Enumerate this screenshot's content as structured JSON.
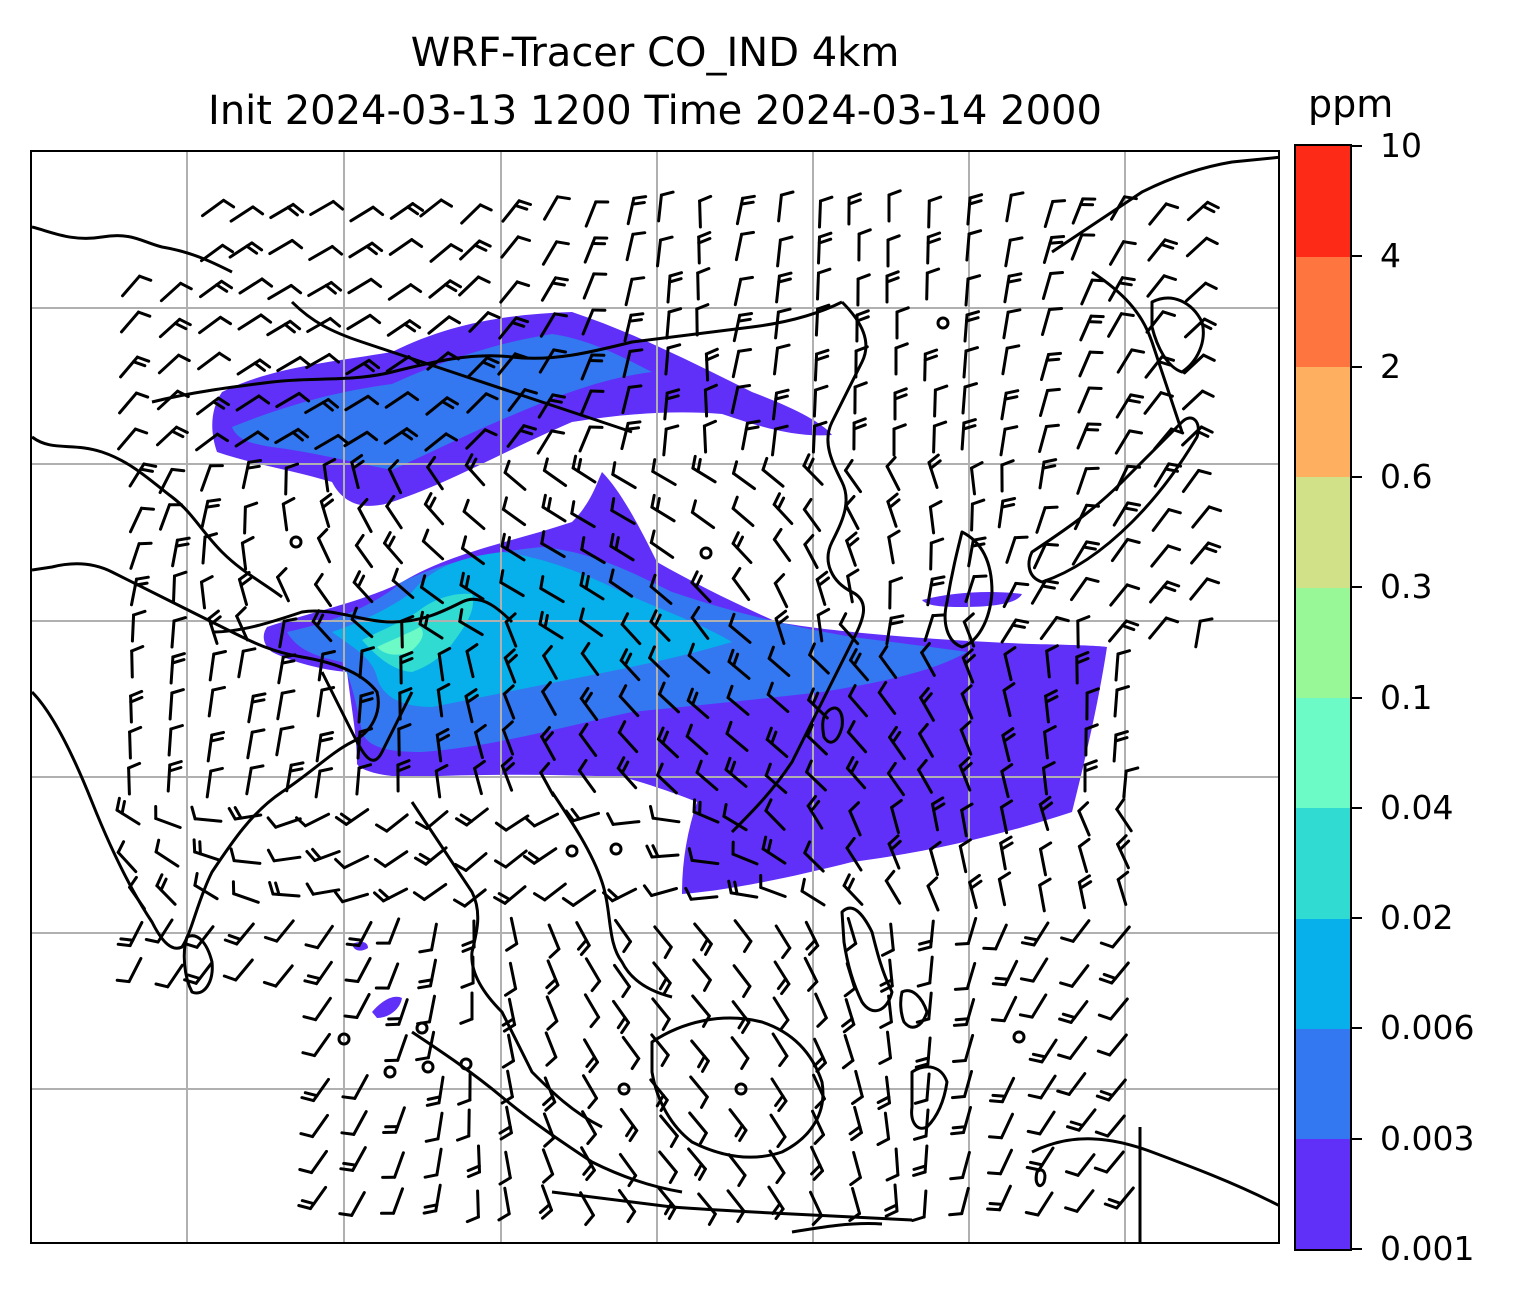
{
  "title": {
    "line1": "WRF-Tracer CO_IND 4km",
    "line2": "Init 2024-03-13 1200 Time 2024-03-14 2000"
  },
  "colorbar": {
    "unit": "ppm",
    "levels": [
      "0.001",
      "0.003",
      "0.006",
      "0.02",
      "0.04",
      "0.1",
      "0.3",
      "0.6",
      "2",
      "4",
      "10"
    ],
    "colors": [
      "#6030f8",
      "#3378f0",
      "#07b0ea",
      "#30dcd2",
      "#6cfac6",
      "#98f898",
      "#d0e188",
      "#feb060",
      "#fe7540",
      "#fe2a18"
    ]
  },
  "map": {
    "gridlines": true,
    "coastline_color": "#000000",
    "wind_barb_color": "#000000",
    "tracer_field": "CO_IND"
  }
}
